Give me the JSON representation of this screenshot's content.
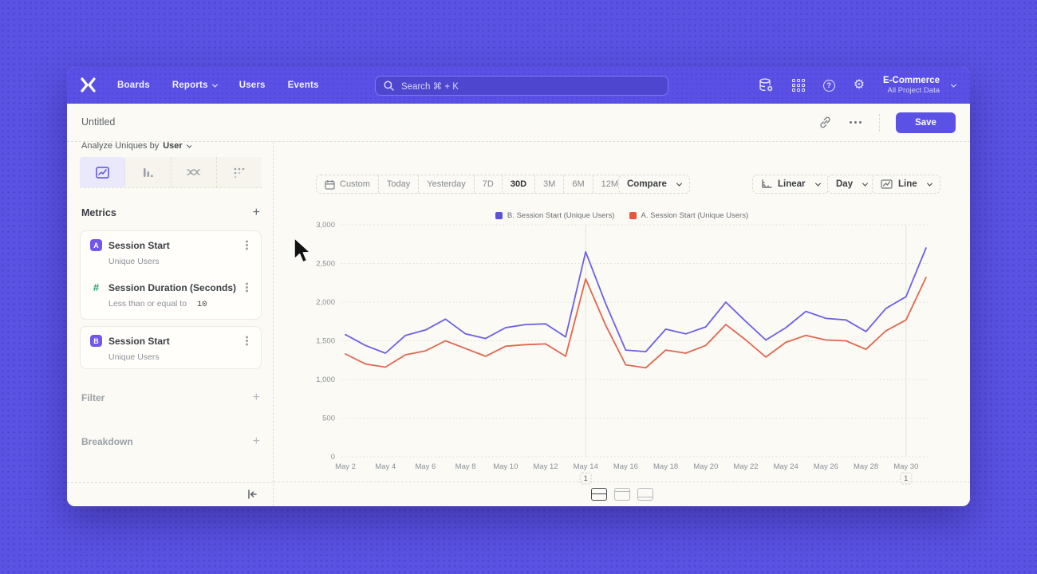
{
  "nav": {
    "items": [
      "Boards",
      "Reports",
      "Users",
      "Events"
    ],
    "search_label": "Search  ⌘ + K",
    "project": {
      "name": "E-Commerce",
      "subtitle": "All Project Data"
    },
    "icons": {
      "help": "?",
      "gear": "⚙"
    }
  },
  "header": {
    "title": "Untitled",
    "save_label": "Save"
  },
  "sidebar": {
    "analyze_prefix": "Analyze Uniques by",
    "analyze_value": "User",
    "metrics": {
      "title": "Metrics",
      "add_label": "+",
      "items": [
        {
          "badge": "A",
          "title": "Session Start",
          "subtitle": "Unique Users"
        },
        {
          "badge": "#",
          "title": "Session Duration (Seconds)",
          "subtitle": "Less than or equal to",
          "value": "10"
        },
        {
          "badge": "B",
          "title": "Session Start",
          "subtitle": "Unique Users"
        }
      ]
    },
    "filter_label": "Filter",
    "breakdown_label": "Breakdown",
    "add_label": "+"
  },
  "toolbar": {
    "ranges": [
      "Custom",
      "Today",
      "Yesterday",
      "7D",
      "30D",
      "3M",
      "6M",
      "12M"
    ],
    "selected_range": "30D",
    "compare_label": "Compare",
    "scale_label": "Linear",
    "interval_label": "Day",
    "type_label": "Line"
  },
  "chart_data": {
    "type": "line",
    "x": [
      "May 2",
      "May 3",
      "May 4",
      "May 5",
      "May 6",
      "May 7",
      "May 8",
      "May 9",
      "May 10",
      "May 11",
      "May 12",
      "May 13",
      "May 14",
      "May 15",
      "May 16",
      "May 17",
      "May 18",
      "May 19",
      "May 20",
      "May 21",
      "May 22",
      "May 23",
      "May 24",
      "May 25",
      "May 26",
      "May 27",
      "May 28",
      "May 29",
      "May 30",
      "May 31"
    ],
    "series": [
      {
        "name": "B. Session Start (Unique Users)",
        "color": "#6c60e6",
        "legend_color": "#5b51e4",
        "values": [
          1580,
          1440,
          1340,
          1570,
          1640,
          1780,
          1590,
          1530,
          1670,
          1710,
          1720,
          1550,
          2650,
          1980,
          1380,
          1360,
          1650,
          1590,
          1680,
          2000,
          1750,
          1510,
          1670,
          1880,
          1790,
          1770,
          1620,
          1920,
          2070,
          2700
        ]
      },
      {
        "name": "A. Session Start (Unique Users)",
        "color": "#e0674f",
        "legend_color": "#e8543c",
        "values": [
          1330,
          1200,
          1160,
          1320,
          1370,
          1500,
          1400,
          1300,
          1430,
          1450,
          1460,
          1300,
          2300,
          1700,
          1190,
          1150,
          1380,
          1340,
          1440,
          1710,
          1510,
          1290,
          1480,
          1570,
          1510,
          1500,
          1390,
          1630,
          1770,
          2320
        ]
      }
    ],
    "ylim": [
      0,
      3000
    ],
    "yticks": [
      0,
      500,
      1000,
      1500,
      2000,
      2500,
      3000
    ],
    "ytick_labels": [
      "0",
      "500",
      "1,000",
      "1,500",
      "2,000",
      "2,500",
      "3,000"
    ],
    "xtick_step": 2,
    "grid": "horizontal-dotted",
    "legend_position": "top-center",
    "annotations": [
      {
        "label": "1",
        "x": "May 14"
      },
      {
        "label": "1",
        "x": "May 30"
      }
    ]
  },
  "colors": {
    "accent": "#5b51e4",
    "page_background": "#5a52e2"
  }
}
